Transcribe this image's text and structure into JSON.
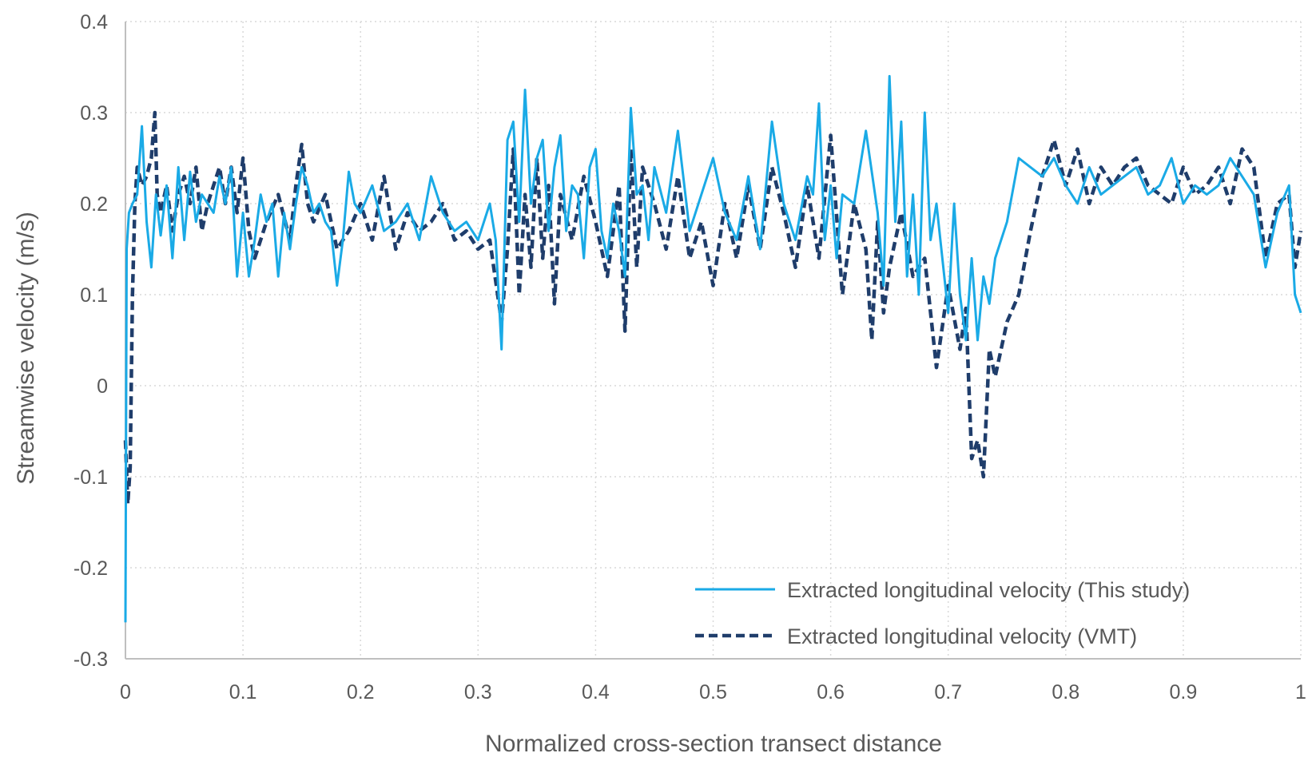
{
  "chart_data": {
    "type": "line",
    "title": "",
    "xlabel": "Normalized cross-section transect distance",
    "ylabel": "Streamwise velocity (m/s)",
    "xlim": [
      0,
      1
    ],
    "ylim": [
      -0.3,
      0.4
    ],
    "x_ticks": [
      0,
      0.1,
      0.2,
      0.3,
      0.4,
      0.5,
      0.6,
      0.7,
      0.8,
      0.9,
      1
    ],
    "y_ticks": [
      -0.3,
      -0.2,
      -0.1,
      0,
      0.1,
      0.2,
      0.3,
      0.4
    ],
    "x_tick_labels": [
      "0",
      "0.1",
      "0.2",
      "0.3",
      "0.4",
      "0.5",
      "0.6",
      "0.7",
      "0.8",
      "0.9",
      "1"
    ],
    "y_tick_labels": [
      "-0.3",
      "-0.2",
      "-0.1",
      "0",
      "0.1",
      "0.2",
      "0.3",
      "0.4"
    ],
    "grid": true,
    "legend_position": "bottom-right",
    "colors": {
      "this_study": "#1aaae6",
      "vmt": "#1f3d6b",
      "grid": "#d9d9d9",
      "axis": "#bfbfbf"
    },
    "series": [
      {
        "name": "Extracted longitudinal velocity (This study)",
        "style": "solid",
        "x": [
          0,
          0.001,
          0.003,
          0.006,
          0.01,
          0.014,
          0.018,
          0.022,
          0.026,
          0.03,
          0.035,
          0.04,
          0.045,
          0.05,
          0.055,
          0.06,
          0.065,
          0.07,
          0.075,
          0.08,
          0.085,
          0.09,
          0.095,
          0.1,
          0.105,
          0.11,
          0.115,
          0.12,
          0.125,
          0.13,
          0.135,
          0.14,
          0.145,
          0.15,
          0.155,
          0.16,
          0.165,
          0.17,
          0.175,
          0.18,
          0.185,
          0.19,
          0.195,
          0.2,
          0.21,
          0.22,
          0.23,
          0.24,
          0.25,
          0.26,
          0.27,
          0.28,
          0.29,
          0.3,
          0.31,
          0.315,
          0.32,
          0.325,
          0.33,
          0.335,
          0.34,
          0.345,
          0.35,
          0.355,
          0.36,
          0.365,
          0.37,
          0.375,
          0.38,
          0.385,
          0.39,
          0.395,
          0.4,
          0.405,
          0.41,
          0.415,
          0.42,
          0.425,
          0.43,
          0.435,
          0.44,
          0.445,
          0.45,
          0.46,
          0.47,
          0.48,
          0.49,
          0.5,
          0.51,
          0.52,
          0.53,
          0.54,
          0.55,
          0.56,
          0.57,
          0.58,
          0.585,
          0.59,
          0.595,
          0.6,
          0.605,
          0.61,
          0.62,
          0.63,
          0.64,
          0.645,
          0.65,
          0.655,
          0.66,
          0.665,
          0.67,
          0.675,
          0.68,
          0.685,
          0.69,
          0.7,
          0.705,
          0.71,
          0.715,
          0.72,
          0.725,
          0.73,
          0.735,
          0.74,
          0.75,
          0.76,
          0.77,
          0.78,
          0.79,
          0.8,
          0.81,
          0.82,
          0.83,
          0.84,
          0.85,
          0.86,
          0.87,
          0.88,
          0.89,
          0.9,
          0.91,
          0.92,
          0.93,
          0.94,
          0.95,
          0.96,
          0.97,
          0.98,
          0.99,
          0.995,
          1
        ],
        "values": [
          -0.26,
          0.15,
          0.19,
          0.2,
          0.21,
          0.285,
          0.18,
          0.13,
          0.21,
          0.165,
          0.22,
          0.14,
          0.24,
          0.16,
          0.235,
          0.18,
          0.21,
          0.2,
          0.19,
          0.23,
          0.2,
          0.24,
          0.12,
          0.19,
          0.12,
          0.16,
          0.21,
          0.18,
          0.2,
          0.12,
          0.19,
          0.15,
          0.2,
          0.24,
          0.22,
          0.19,
          0.2,
          0.18,
          0.17,
          0.11,
          0.16,
          0.235,
          0.2,
          0.19,
          0.22,
          0.17,
          0.18,
          0.2,
          0.16,
          0.23,
          0.19,
          0.17,
          0.18,
          0.16,
          0.2,
          0.16,
          0.04,
          0.27,
          0.29,
          0.18,
          0.325,
          0.2,
          0.25,
          0.27,
          0.17,
          0.24,
          0.275,
          0.17,
          0.22,
          0.21,
          0.14,
          0.24,
          0.26,
          0.17,
          0.14,
          0.2,
          0.17,
          0.12,
          0.305,
          0.21,
          0.22,
          0.16,
          0.24,
          0.19,
          0.28,
          0.17,
          0.21,
          0.25,
          0.19,
          0.16,
          0.23,
          0.15,
          0.29,
          0.2,
          0.16,
          0.23,
          0.21,
          0.31,
          0.16,
          0.22,
          0.14,
          0.21,
          0.2,
          0.28,
          0.19,
          0.11,
          0.34,
          0.18,
          0.29,
          0.12,
          0.21,
          0.1,
          0.3,
          0.16,
          0.2,
          0.08,
          0.2,
          0.1,
          0.05,
          0.14,
          0.05,
          0.12,
          0.09,
          0.14,
          0.18,
          0.25,
          0.24,
          0.23,
          0.25,
          0.22,
          0.2,
          0.24,
          0.21,
          0.22,
          0.23,
          0.24,
          0.21,
          0.22,
          0.25,
          0.2,
          0.22,
          0.21,
          0.22,
          0.25,
          0.23,
          0.21,
          0.13,
          0.19,
          0.22,
          0.1,
          0.08
        ]
      },
      {
        "name": "Extracted longitudinal velocity (VMT)",
        "style": "dashed",
        "x": [
          0,
          0.002,
          0.004,
          0.006,
          0.008,
          0.01,
          0.014,
          0.018,
          0.022,
          0.025,
          0.027,
          0.03,
          0.035,
          0.04,
          0.045,
          0.05,
          0.055,
          0.06,
          0.065,
          0.07,
          0.075,
          0.08,
          0.085,
          0.09,
          0.095,
          0.1,
          0.105,
          0.11,
          0.12,
          0.13,
          0.14,
          0.145,
          0.15,
          0.155,
          0.16,
          0.17,
          0.18,
          0.19,
          0.2,
          0.21,
          0.22,
          0.23,
          0.24,
          0.25,
          0.26,
          0.27,
          0.28,
          0.29,
          0.3,
          0.31,
          0.32,
          0.325,
          0.33,
          0.335,
          0.34,
          0.345,
          0.35,
          0.355,
          0.36,
          0.365,
          0.37,
          0.38,
          0.39,
          0.4,
          0.41,
          0.42,
          0.425,
          0.43,
          0.435,
          0.44,
          0.45,
          0.46,
          0.47,
          0.48,
          0.49,
          0.5,
          0.51,
          0.52,
          0.53,
          0.54,
          0.55,
          0.56,
          0.57,
          0.58,
          0.59,
          0.6,
          0.61,
          0.62,
          0.63,
          0.635,
          0.64,
          0.645,
          0.65,
          0.66,
          0.67,
          0.68,
          0.69,
          0.7,
          0.71,
          0.715,
          0.72,
          0.725,
          0.73,
          0.735,
          0.74,
          0.75,
          0.76,
          0.77,
          0.78,
          0.79,
          0.8,
          0.81,
          0.82,
          0.83,
          0.84,
          0.85,
          0.86,
          0.87,
          0.88,
          0.89,
          0.9,
          0.91,
          0.92,
          0.93,
          0.94,
          0.95,
          0.96,
          0.97,
          0.98,
          0.99,
          0.995,
          1
        ],
        "values": [
          -0.06,
          -0.13,
          -0.09,
          0.1,
          0.2,
          0.24,
          0.22,
          0.23,
          0.25,
          0.3,
          0.21,
          0.19,
          0.22,
          0.17,
          0.21,
          0.23,
          0.2,
          0.24,
          0.17,
          0.2,
          0.22,
          0.24,
          0.2,
          0.24,
          0.19,
          0.25,
          0.17,
          0.14,
          0.18,
          0.21,
          0.16,
          0.22,
          0.265,
          0.2,
          0.18,
          0.21,
          0.15,
          0.17,
          0.2,
          0.16,
          0.23,
          0.15,
          0.19,
          0.17,
          0.18,
          0.2,
          0.16,
          0.17,
          0.15,
          0.16,
          0.07,
          0.15,
          0.26,
          0.1,
          0.21,
          0.13,
          0.25,
          0.14,
          0.22,
          0.09,
          0.21,
          0.16,
          0.23,
          0.18,
          0.12,
          0.22,
          0.06,
          0.26,
          0.13,
          0.24,
          0.2,
          0.15,
          0.23,
          0.14,
          0.18,
          0.11,
          0.2,
          0.14,
          0.22,
          0.15,
          0.24,
          0.19,
          0.13,
          0.22,
          0.14,
          0.275,
          0.1,
          0.2,
          0.15,
          0.05,
          0.18,
          0.08,
          0.13,
          0.19,
          0.12,
          0.14,
          0.02,
          0.11,
          0.04,
          0.085,
          -0.08,
          -0.06,
          -0.1,
          0.04,
          0.01,
          0.07,
          0.1,
          0.17,
          0.23,
          0.27,
          0.22,
          0.26,
          0.2,
          0.24,
          0.22,
          0.24,
          0.25,
          0.22,
          0.21,
          0.2,
          0.24,
          0.21,
          0.22,
          0.24,
          0.2,
          0.26,
          0.24,
          0.14,
          0.2,
          0.21,
          0.13,
          0.17
        ]
      }
    ]
  }
}
